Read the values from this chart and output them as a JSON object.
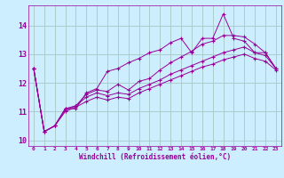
{
  "background_color": "#cceeff",
  "grid_color": "#aacccc",
  "line_color": "#990099",
  "marker": "+",
  "marker_size": 3,
  "xlabel": "Windchill (Refroidissement éolien,°C)",
  "xlim": [
    -0.5,
    23.5
  ],
  "ylim": [
    9.8,
    14.7
  ],
  "yticks": [
    10,
    11,
    12,
    13,
    14
  ],
  "xticks": [
    0,
    1,
    2,
    3,
    4,
    5,
    6,
    7,
    8,
    9,
    10,
    11,
    12,
    13,
    14,
    15,
    16,
    17,
    18,
    19,
    20,
    21,
    22,
    23
  ],
  "series": [
    [
      12.5,
      10.3,
      10.5,
      11.1,
      11.1,
      11.65,
      11.8,
      12.4,
      12.5,
      12.7,
      12.85,
      13.05,
      13.15,
      13.4,
      13.55,
      13.05,
      13.55,
      13.55,
      14.4,
      13.55,
      13.45,
      13.05,
      13.05,
      12.5
    ],
    [
      12.5,
      10.3,
      10.5,
      11.1,
      11.2,
      11.6,
      11.75,
      11.7,
      11.95,
      11.75,
      12.05,
      12.15,
      12.45,
      12.7,
      12.9,
      13.1,
      13.35,
      13.45,
      13.65,
      13.65,
      13.6,
      13.35,
      13.05,
      12.5
    ],
    [
      12.5,
      10.3,
      10.5,
      11.05,
      11.2,
      11.5,
      11.65,
      11.55,
      11.65,
      11.6,
      11.8,
      11.95,
      12.1,
      12.3,
      12.45,
      12.6,
      12.75,
      12.9,
      13.05,
      13.15,
      13.25,
      13.05,
      12.95,
      12.5
    ],
    [
      12.5,
      10.3,
      10.5,
      11.0,
      11.15,
      11.35,
      11.5,
      11.4,
      11.5,
      11.45,
      11.65,
      11.8,
      11.95,
      12.1,
      12.25,
      12.4,
      12.55,
      12.65,
      12.8,
      12.9,
      13.0,
      12.85,
      12.75,
      12.45
    ]
  ]
}
